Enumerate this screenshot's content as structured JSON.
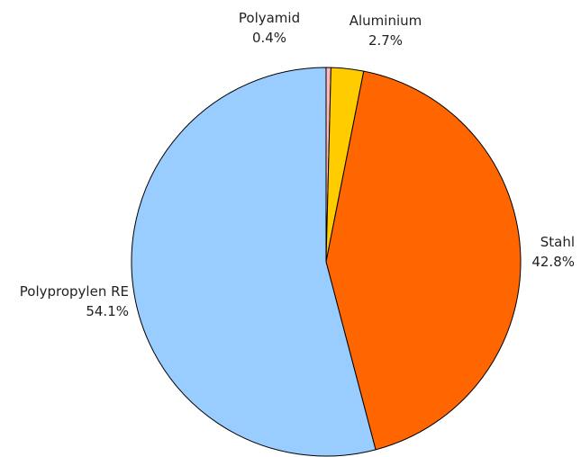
{
  "chart_data": {
    "type": "pie",
    "slices": [
      {
        "label": "Polyamid",
        "value": 0.4,
        "value_label": "0.4%",
        "color": "#ffb8b8"
      },
      {
        "label": "Aluminium",
        "value": 2.7,
        "value_label": "2.7%",
        "color": "#ffcc00"
      },
      {
        "label": "Stahl",
        "value": 42.8,
        "value_label": "42.8%",
        "color": "#ff6600"
      },
      {
        "label": "Polypropylen RE",
        "value": 54.1,
        "value_label": "54.1%",
        "color": "#99ccff"
      }
    ],
    "start_angle": "12 o'clock, clockwise",
    "edge_color": "#000000",
    "legend": "none"
  }
}
